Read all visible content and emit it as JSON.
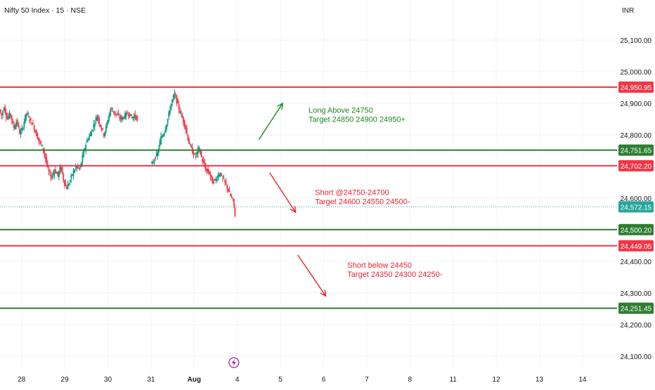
{
  "header": {
    "title": "Nifty 50 Index · 15 · NSE",
    "currency": "INR"
  },
  "colors": {
    "up": "#089981",
    "down": "#f23645",
    "green_level": "#2e7d32",
    "red_level": "#f23645",
    "price_badge": "#26a69a",
    "annotation_green": "#1b8a1b",
    "annotation_red": "#e8232f",
    "grid": "#f0f3fa",
    "axis_text": "#131722",
    "event_marker": "#9c27b0"
  },
  "chart_data": {
    "type": "candlestick",
    "title": "Nifty 50 Index · 15 · NSE",
    "y_axis": {
      "unit": "INR",
      "range": [
        24055,
        25160
      ],
      "ticks": [
        {
          "value": 25100,
          "label": "25,100.00"
        },
        {
          "value": 25000,
          "label": "25,000.00"
        },
        {
          "value": 24900,
          "label": "24,900.00"
        },
        {
          "value": 24800,
          "label": "24,800.00"
        },
        {
          "value": 24600,
          "label": "24,600.00"
        },
        {
          "value": 24400,
          "label": "24,400.00"
        },
        {
          "value": 24300,
          "label": "24,300.00"
        },
        {
          "value": 24200,
          "label": "24,200.00"
        },
        {
          "value": 24100,
          "label": "24,100.00"
        }
      ]
    },
    "x_axis": {
      "ticks": [
        {
          "pos": 0.5,
          "label": "28"
        },
        {
          "pos": 1.5,
          "label": "29"
        },
        {
          "pos": 2.5,
          "label": "30"
        },
        {
          "pos": 3.5,
          "label": "31"
        },
        {
          "pos": 4.5,
          "label": "Aug",
          "bold": true
        },
        {
          "pos": 5.5,
          "label": "4"
        },
        {
          "pos": 6.5,
          "label": "5"
        },
        {
          "pos": 7.5,
          "label": "6"
        },
        {
          "pos": 8.5,
          "label": "7"
        },
        {
          "pos": 9.5,
          "label": "8"
        },
        {
          "pos": 10.5,
          "label": "11"
        },
        {
          "pos": 11.5,
          "label": "12"
        },
        {
          "pos": 12.5,
          "label": "13"
        },
        {
          "pos": 13.5,
          "label": "14"
        }
      ],
      "domain": [
        0,
        14.3
      ]
    },
    "horizontal_levels": [
      {
        "value": 24950.95,
        "label": "24,950.95",
        "kind": "red"
      },
      {
        "value": 24751.65,
        "label": "24,751.65",
        "kind": "green"
      },
      {
        "value": 24702.2,
        "label": "24,702.20",
        "kind": "red"
      },
      {
        "value": 24500.2,
        "label": "24,500.20",
        "kind": "green"
      },
      {
        "value": 24449.05,
        "label": "24,449.05",
        "kind": "red"
      },
      {
        "value": 24251.45,
        "label": "24,251.45",
        "kind": "green"
      }
    ],
    "last_price": {
      "value": 24572.15,
      "label": "24,572.15"
    },
    "candle_path": [
      [
        0.0,
        24880
      ],
      [
        0.05,
        24860
      ],
      [
        0.1,
        24890
      ],
      [
        0.18,
        24850
      ],
      [
        0.25,
        24870
      ],
      [
        0.33,
        24820
      ],
      [
        0.4,
        24845
      ],
      [
        0.48,
        24800
      ],
      [
        0.55,
        24830
      ],
      [
        0.62,
        24870
      ],
      [
        0.7,
        24850
      ],
      [
        0.78,
        24830
      ],
      [
        0.86,
        24800
      ],
      [
        0.92,
        24780
      ],
      [
        1.0,
        24760
      ],
      [
        1.06,
        24730
      ],
      [
        1.12,
        24690
      ],
      [
        1.2,
        24665
      ],
      [
        1.28,
        24690
      ],
      [
        1.35,
        24670
      ],
      [
        1.42,
        24700
      ],
      [
        1.48,
        24660
      ],
      [
        1.55,
        24630
      ],
      [
        1.62,
        24650
      ],
      [
        1.7,
        24680
      ],
      [
        1.78,
        24700
      ],
      [
        1.86,
        24690
      ],
      [
        1.94,
        24740
      ],
      [
        2.02,
        24780
      ],
      [
        2.1,
        24800
      ],
      [
        2.18,
        24830
      ],
      [
        2.26,
        24860
      ],
      [
        2.34,
        24830
      ],
      [
        2.42,
        24800
      ],
      [
        2.5,
        24840
      ],
      [
        2.58,
        24885
      ],
      [
        2.66,
        24870
      ],
      [
        2.74,
        24860
      ],
      [
        2.82,
        24850
      ],
      [
        2.9,
        24860
      ],
      [
        2.98,
        24870
      ],
      [
        3.06,
        24855
      ],
      [
        3.14,
        24860
      ],
      [
        3.22,
        24845
      ],
      [
        3.5,
        24700
      ],
      [
        3.58,
        24720
      ],
      [
        3.66,
        24740
      ],
      [
        3.74,
        24790
      ],
      [
        3.82,
        24810
      ],
      [
        3.9,
        24850
      ],
      [
        3.98,
        24900
      ],
      [
        4.06,
        24930
      ],
      [
        4.14,
        24890
      ],
      [
        4.22,
        24860
      ],
      [
        4.3,
        24830
      ],
      [
        4.38,
        24780
      ],
      [
        4.46,
        24750
      ],
      [
        4.54,
        24730
      ],
      [
        4.62,
        24760
      ],
      [
        4.7,
        24720
      ],
      [
        4.78,
        24690
      ],
      [
        4.86,
        24680
      ],
      [
        4.94,
        24650
      ],
      [
        5.02,
        24660
      ],
      [
        5.1,
        24680
      ],
      [
        5.18,
        24660
      ],
      [
        5.26,
        24640
      ],
      [
        5.34,
        24610
      ],
      [
        5.42,
        24590
      ],
      [
        5.46,
        24545
      ]
    ],
    "annotations": [
      {
        "lines": [
          "Long Above 24750",
          "Target 24850 24900 24950+"
        ],
        "color": "green",
        "arrow": {
          "from": [
            6.0,
            24785
          ],
          "to": [
            6.55,
            24900
          ]
        },
        "text_at": [
          7.15,
          24870
        ]
      },
      {
        "lines": [
          "Short @24750-24700",
          "Target 24600 24550 24500-"
        ],
        "color": "red",
        "arrow": {
          "from": [
            6.25,
            24680
          ],
          "to": [
            6.85,
            24555
          ]
        },
        "text_at": [
          7.3,
          24610
        ]
      },
      {
        "lines": [
          "Short below 24450",
          "Target 24350 24300 24250-"
        ],
        "color": "red",
        "arrow": {
          "from": [
            6.9,
            24420
          ],
          "to": [
            7.55,
            24290
          ]
        },
        "text_at": [
          8.05,
          24380
        ]
      }
    ],
    "event_marker": {
      "pos": 5.42,
      "icon": "lightning-icon"
    }
  }
}
